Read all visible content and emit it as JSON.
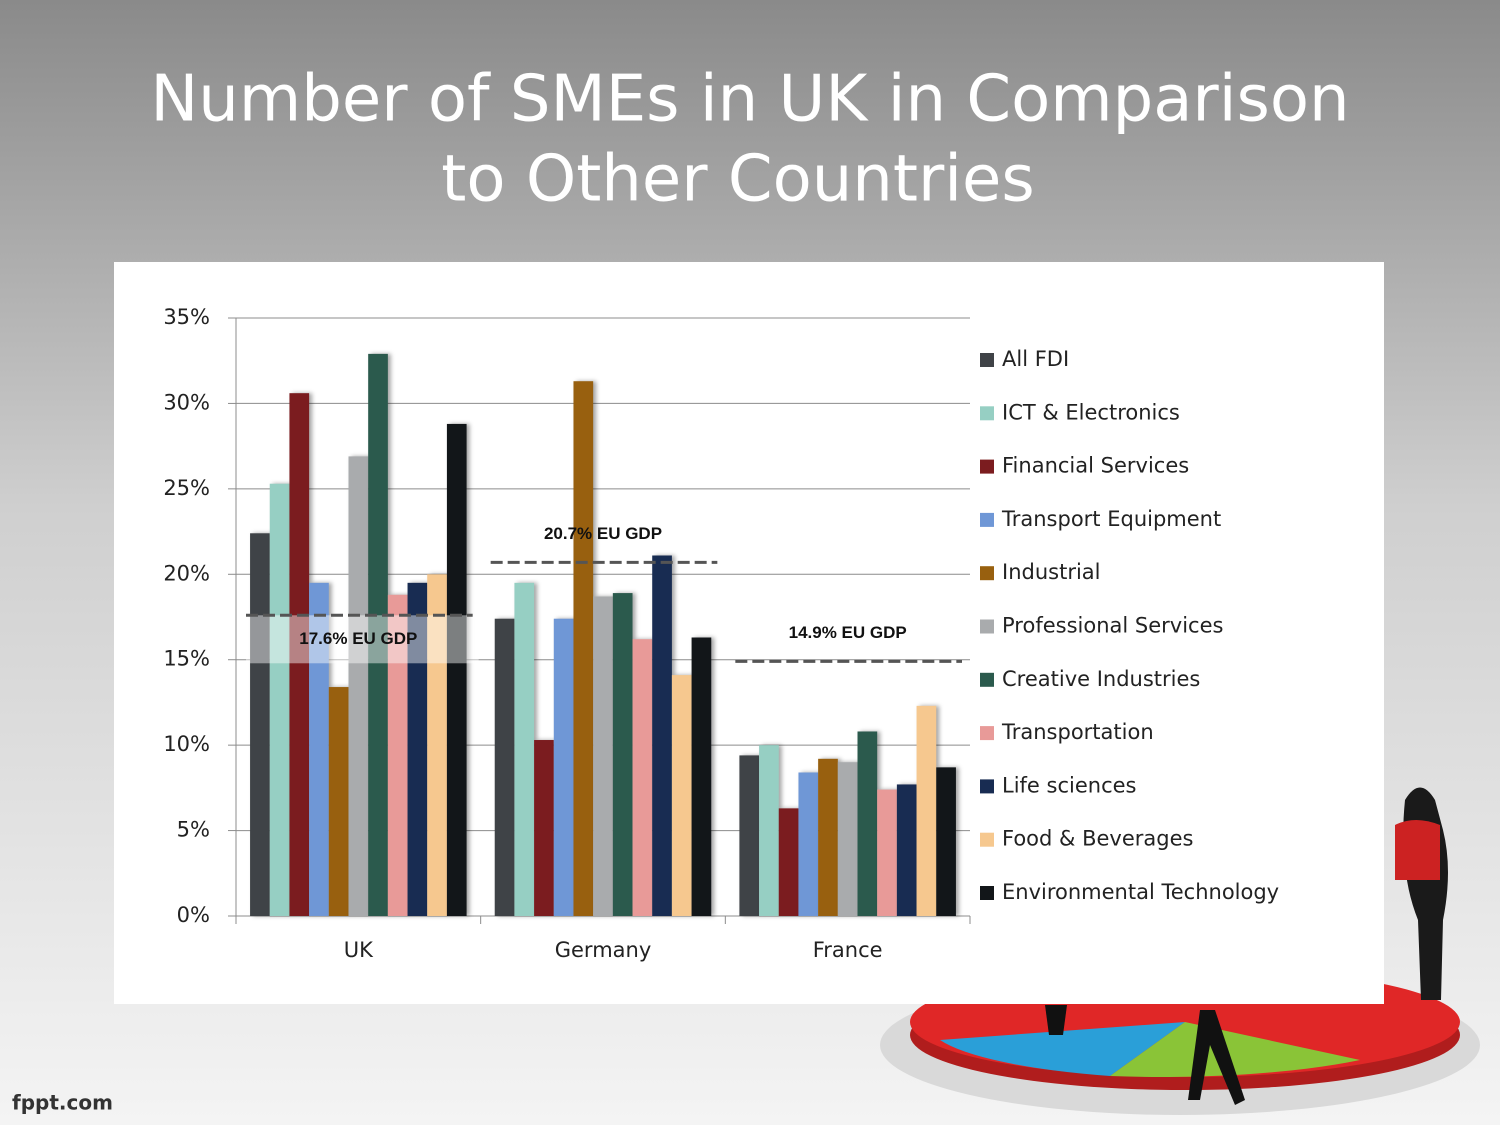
{
  "chart_data": {
    "type": "bar",
    "title": "Number of SMEs in UK in Comparison to Other Countries",
    "categories": [
      "UK",
      "Germany",
      "France"
    ],
    "series": [
      {
        "name": "All FDI",
        "color": "#3f4347",
        "values": [
          22.4,
          17.4,
          9.4
        ]
      },
      {
        "name": "ICT & Electronics",
        "color": "#96cfc3",
        "values": [
          25.3,
          19.5,
          10.0
        ]
      },
      {
        "name": "Financial Services",
        "color": "#7b1c1f",
        "values": [
          30.6,
          10.3,
          6.3
        ]
      },
      {
        "name": "Transport Equipment",
        "color": "#6f97d6",
        "values": [
          19.5,
          17.4,
          8.4
        ]
      },
      {
        "name": "Industrial",
        "color": "#98600f",
        "values": [
          13.4,
          31.3,
          9.2
        ]
      },
      {
        "name": "Professional Services",
        "color": "#a9abad",
        "values": [
          26.9,
          18.7,
          9.0
        ]
      },
      {
        "name": "Creative Industries",
        "color": "#2b5a4d",
        "values": [
          32.9,
          18.9,
          10.8
        ]
      },
      {
        "name": "Transportation",
        "color": "#e89a98",
        "values": [
          18.8,
          16.2,
          7.4
        ]
      },
      {
        "name": "Life sciences",
        "color": "#182c52",
        "values": [
          19.5,
          21.1,
          7.7
        ]
      },
      {
        "name": "Food & Beverages",
        "color": "#f6c88f",
        "values": [
          20.0,
          14.1,
          12.3
        ]
      },
      {
        "name": "Environmental Technology",
        "color": "#121619",
        "values": [
          28.8,
          16.3,
          8.7
        ]
      }
    ],
    "reference_lines": [
      {
        "value": 17.6,
        "label": "17.6% EU GDP"
      },
      {
        "value": 20.7,
        "label": "20.7% EU GDP"
      },
      {
        "value": 14.9,
        "label": "14.9% EU GDP"
      }
    ],
    "ylim": [
      0,
      35
    ],
    "yticks": [
      {
        "value": 0,
        "label": "0%"
      },
      {
        "value": 5,
        "label": "5%"
      },
      {
        "value": 10,
        "label": "10%"
      },
      {
        "value": 15,
        "label": "15%"
      },
      {
        "value": 20,
        "label": "20%"
      },
      {
        "value": 25,
        "label": "25%"
      },
      {
        "value": 30,
        "label": "30%"
      },
      {
        "value": 35,
        "label": "35%"
      }
    ],
    "grid": true,
    "legend": "right"
  },
  "footer": "fppt.com"
}
